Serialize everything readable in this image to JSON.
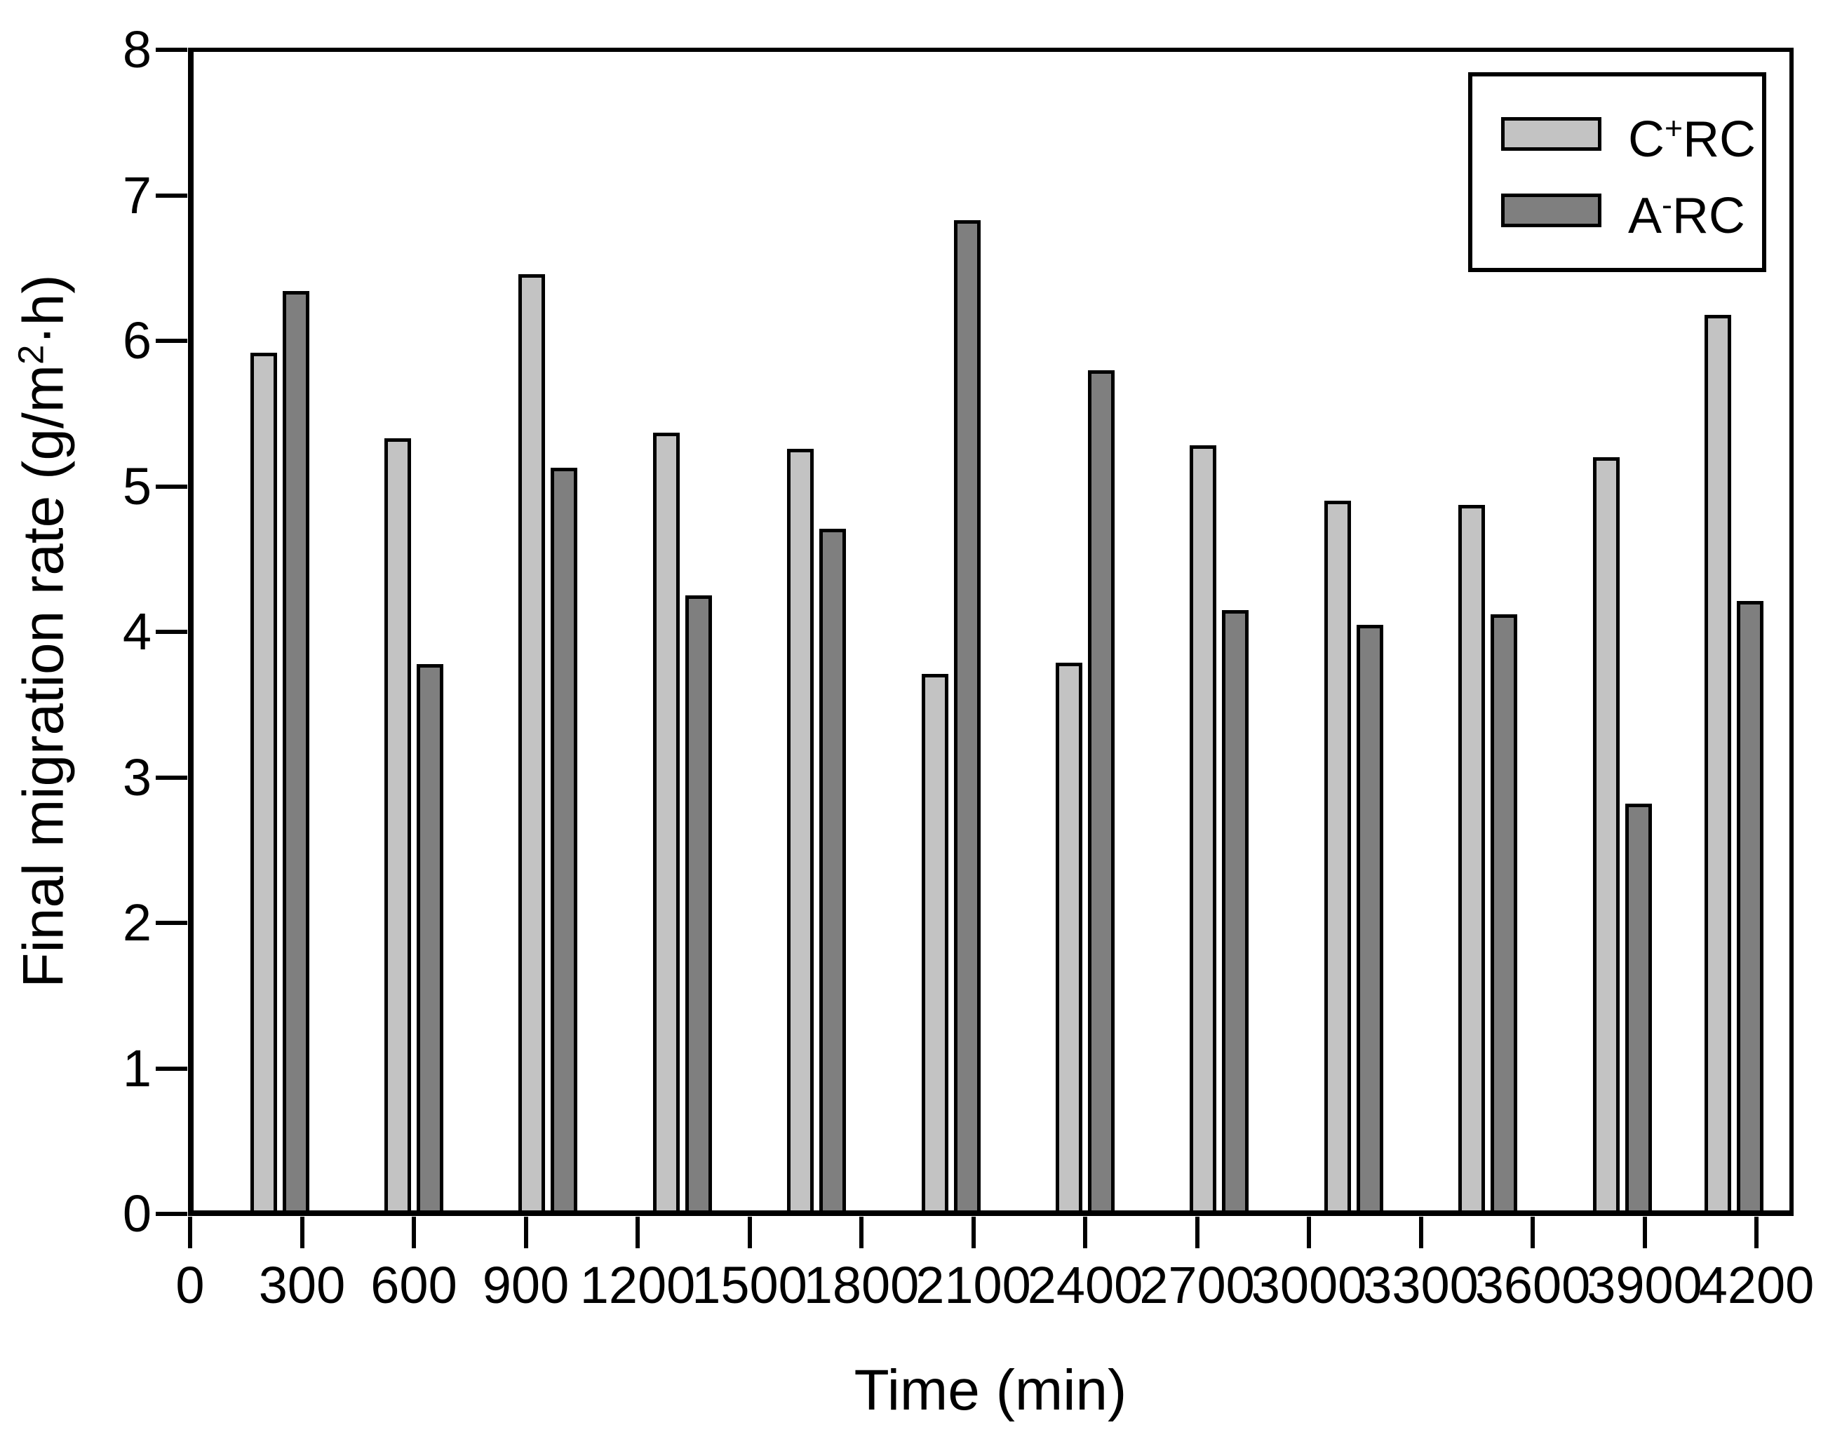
{
  "chart_data": {
    "type": "bar",
    "title": "",
    "xlabel": "Time (min)",
    "ylabel": "Final migration rate (g/m2·h)",
    "ylabel_parts": {
      "pre": "Final migration rate (g/m",
      "sup": "2",
      "post": "·h)"
    },
    "xlim": [
      0,
      4200
    ],
    "ylim": [
      0,
      8
    ],
    "x_tick_labels": [
      "0",
      "300",
      "600",
      "900",
      "1200",
      "1500",
      "1800",
      "2100",
      "2400",
      "2700",
      "3000",
      "3300",
      "3600",
      "3900",
      "4200"
    ],
    "x_tick_values": [
      0,
      300,
      600,
      900,
      1200,
      1500,
      1800,
      2100,
      2400,
      2700,
      3000,
      3300,
      3600,
      3900,
      4200
    ],
    "y_tick_labels": [
      "0",
      "1",
      "2",
      "3",
      "4",
      "5",
      "6",
      "7",
      "8"
    ],
    "y_tick_values": [
      0,
      1,
      2,
      3,
      4,
      5,
      6,
      7,
      8
    ],
    "grid": false,
    "legend_position": "top-right",
    "categories_time_min": [
      240,
      600,
      960,
      1320,
      1680,
      2040,
      2400,
      2760,
      3120,
      3480,
      3840,
      4140
    ],
    "series": [
      {
        "name": "C+RC",
        "label_parts": {
          "pre": "C",
          "sup": "+",
          "post": "RC"
        },
        "color": "#c3c3c3",
        "values": [
          5.92,
          5.33,
          6.46,
          5.37,
          5.26,
          3.71,
          3.79,
          5.28,
          4.9,
          4.87,
          5.2,
          6.18
        ]
      },
      {
        "name": "A-RC",
        "label_parts": {
          "pre": "A",
          "sup": "-",
          "post": "RC"
        },
        "color": "#7f7f7f",
        "values": [
          6.34,
          3.78,
          5.13,
          4.25,
          4.71,
          6.83,
          5.8,
          4.15,
          4.05,
          4.12,
          2.82,
          4.21
        ]
      }
    ],
    "colors": {
      "bar_edge": "#000000",
      "axis": "#000000",
      "background": "#ffffff"
    }
  }
}
